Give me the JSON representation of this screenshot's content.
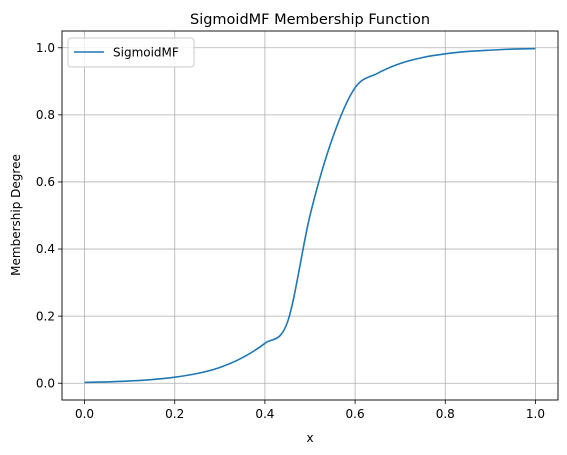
{
  "chart_data": {
    "type": "line",
    "title": "SigmoidMF Membership Function",
    "xlabel": "x",
    "ylabel": "Membership Degree",
    "xlim": [
      -0.05,
      1.05
    ],
    "ylim": [
      -0.05,
      1.05
    ],
    "xticks": [
      0.0,
      0.2,
      0.4,
      0.6,
      0.8,
      1.0
    ],
    "xtick_labels": [
      "0.0",
      "0.2",
      "0.4",
      "0.6",
      "0.8",
      "1.0"
    ],
    "yticks": [
      0.0,
      0.2,
      0.4,
      0.6,
      0.8,
      1.0
    ],
    "ytick_labels": [
      "0.0",
      "0.2",
      "0.4",
      "0.6",
      "0.8",
      "1.0"
    ],
    "grid": true,
    "legend_position": "upper-left",
    "series": [
      {
        "name": "SigmoidMF",
        "color": "#1f77b4",
        "x": [
          0.0,
          0.05,
          0.1,
          0.15,
          0.2,
          0.25,
          0.3,
          0.35,
          0.4,
          0.45,
          0.5,
          0.55,
          0.6,
          0.65,
          0.7,
          0.75,
          0.8,
          0.85,
          0.9,
          0.95,
          1.0
        ],
        "y": [
          0.0025,
          0.004,
          0.0067,
          0.011,
          0.018,
          0.029,
          0.047,
          0.076,
          0.119,
          0.182,
          0.5,
          0.731,
          0.881,
          0.924,
          0.953,
          0.971,
          0.982,
          0.989,
          0.993,
          0.996,
          0.9975
        ]
      }
    ]
  }
}
